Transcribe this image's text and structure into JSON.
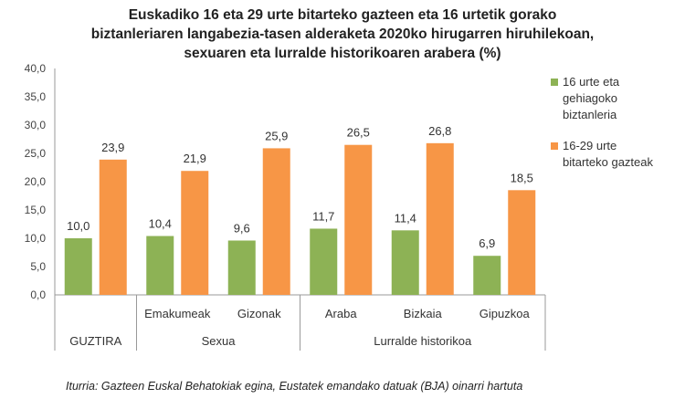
{
  "chart_data": {
    "type": "bar",
    "title_lines": [
      "Euskadiko 16 eta 29 urte bitarteko gazteen eta 16 urtetik gorako",
      "biztanleriaren langabezia-tasen alderaketa 2020ko hirugarren hiruhilekoan,",
      "sexuaren eta lurralde historikoaren arabera (%)"
    ],
    "categories": [
      "",
      "Emakumeak",
      "Gizonak",
      "Araba",
      "Bizkaia",
      "Gipuzkoa"
    ],
    "groups": [
      {
        "label": "GUZTIRA",
        "span": 1
      },
      {
        "label": "Sexua",
        "span": 2
      },
      {
        "label": "Lurralde historikoa",
        "span": 3
      }
    ],
    "series": [
      {
        "name": "16 urte eta gehiagoko biztanleria",
        "name_lines": [
          "16 urte eta",
          "gehiagoko",
          "biztanleria"
        ],
        "color": "#8db255",
        "values": [
          10.0,
          10.4,
          9.6,
          11.7,
          11.4,
          6.9
        ]
      },
      {
        "name": "16-29 urte bitarteko gazteak",
        "name_lines": [
          "16-29 urte",
          "bitarteko gazteak"
        ],
        "color": "#f79646",
        "values": [
          23.9,
          21.9,
          25.9,
          26.5,
          26.8,
          18.5
        ]
      }
    ],
    "ylim": [
      0,
      40
    ],
    "yticks": [
      "0,0",
      "5,0",
      "10,0",
      "15,0",
      "20,0",
      "25,0",
      "30,0",
      "35,0",
      "40,0"
    ],
    "grid": false,
    "legend": "right",
    "data_labels": true
  },
  "source": "Iturria: Gazteen Euskal Behatokiak egina, Eustatek emandako datuak (BJA) oinarri hartuta"
}
